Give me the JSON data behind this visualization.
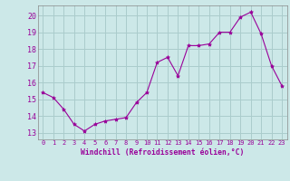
{
  "x": [
    0,
    1,
    2,
    3,
    4,
    5,
    6,
    7,
    8,
    9,
    10,
    11,
    12,
    13,
    14,
    15,
    16,
    17,
    18,
    19,
    20,
    21,
    22,
    23
  ],
  "y": [
    15.4,
    15.1,
    14.4,
    13.5,
    13.1,
    13.5,
    13.7,
    13.8,
    13.9,
    14.8,
    15.4,
    17.2,
    17.5,
    16.4,
    18.2,
    18.2,
    18.3,
    19.0,
    19.0,
    19.9,
    20.2,
    18.9,
    17.0,
    15.8
  ],
  "line_color": "#990099",
  "marker": "*",
  "marker_size": 3,
  "bg_color": "#cce8e8",
  "grid_color": "#aacccc",
  "xlabel": "Windchill (Refroidissement éolien,°C)",
  "xlabel_color": "#990099",
  "tick_color": "#990099",
  "ylim": [
    12.6,
    20.6
  ],
  "xlim": [
    -0.5,
    23.5
  ],
  "yticks": [
    13,
    14,
    15,
    16,
    17,
    18,
    19,
    20
  ],
  "xticks": [
    0,
    1,
    2,
    3,
    4,
    5,
    6,
    7,
    8,
    9,
    10,
    11,
    12,
    13,
    14,
    15,
    16,
    17,
    18,
    19,
    20,
    21,
    22,
    23
  ]
}
